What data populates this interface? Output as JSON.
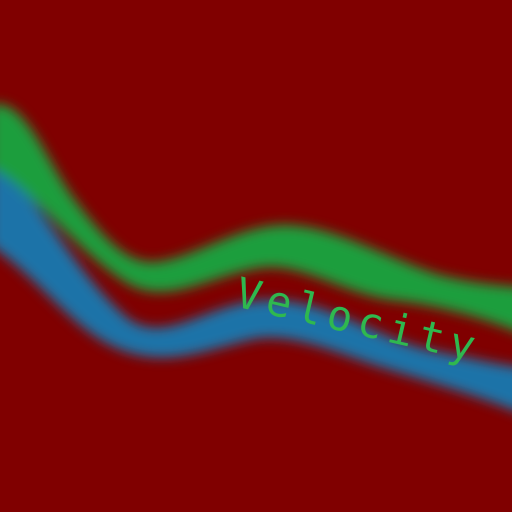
{
  "label": "Velocity",
  "colors": {
    "background": "#800000",
    "upper_band": "#1b9e3c",
    "lower_band": "#1a73a8",
    "label": "#2fb84f"
  }
}
